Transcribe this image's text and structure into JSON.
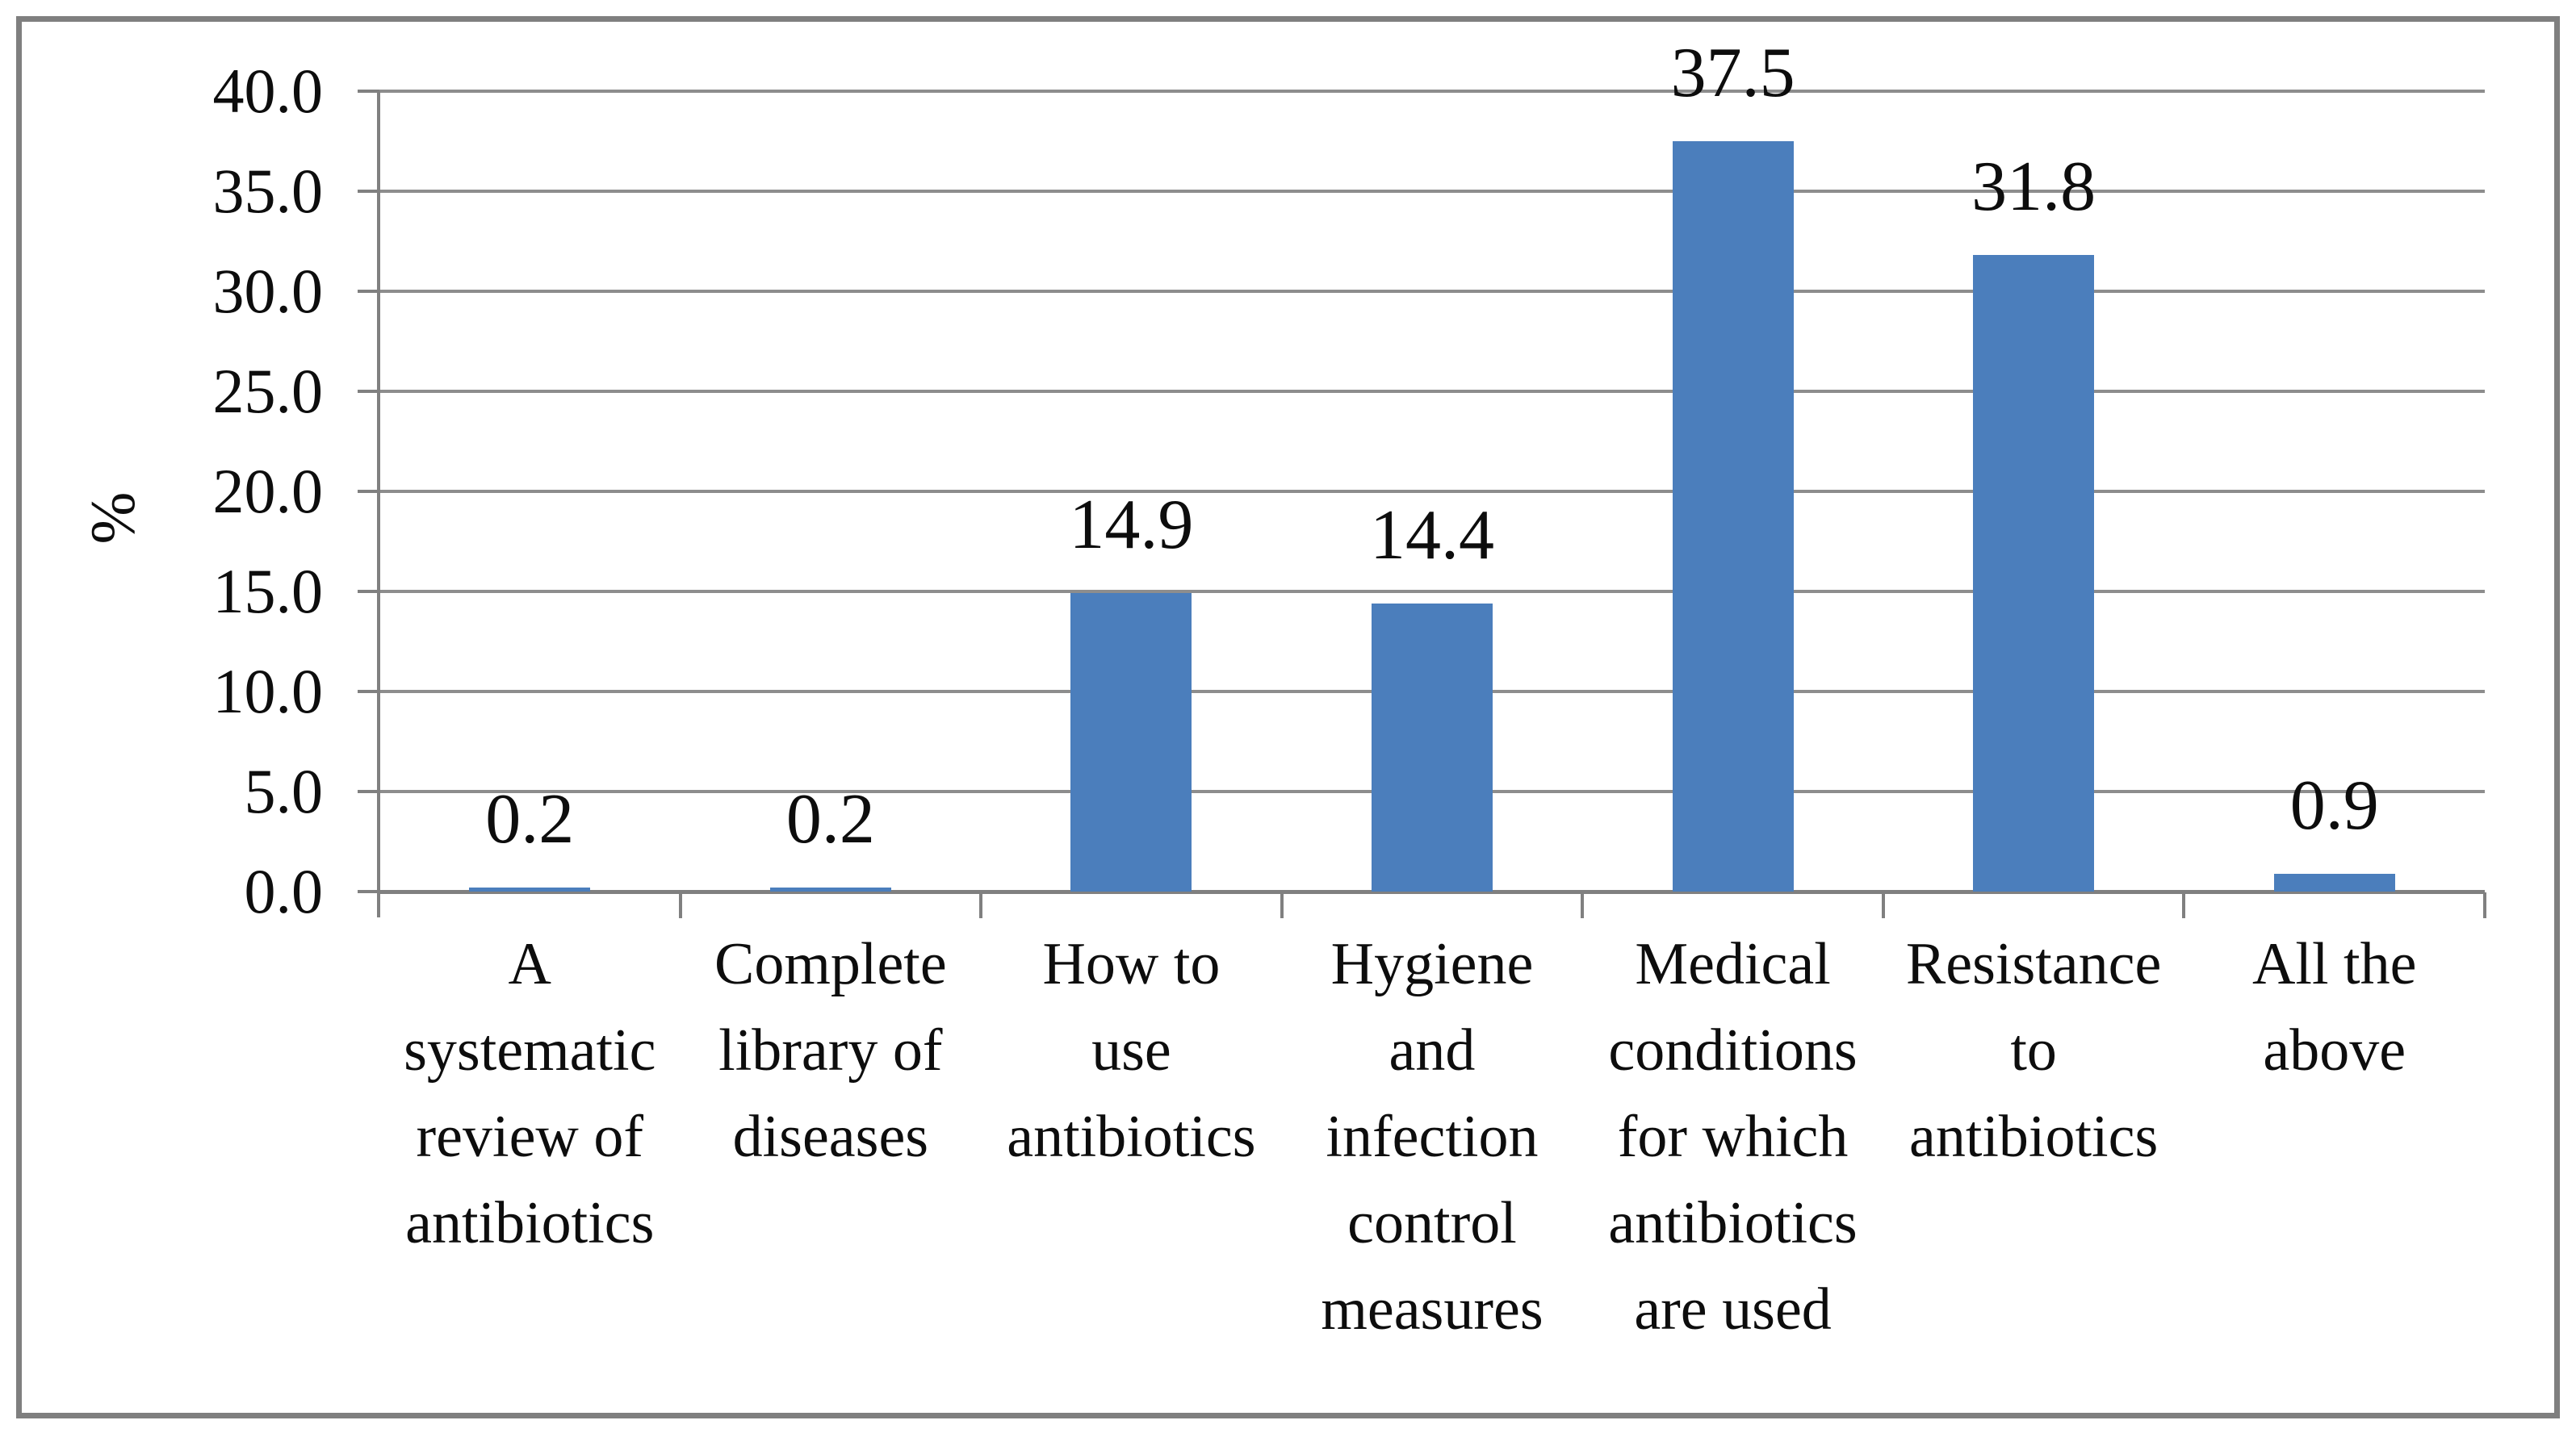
{
  "chart_data": {
    "type": "bar",
    "title": "",
    "ylabel": "%",
    "xlabel": "",
    "categories": [
      "A systematic review of antibiotics",
      "Complete library of diseases",
      "How to use antibiotics",
      "Hygiene and infection control measures",
      "Medical conditions for which antibiotics are used",
      "Resistance to antibiotics",
      "All the above"
    ],
    "category_lines": [
      [
        "A",
        "systematic",
        "review of",
        "antibiotics"
      ],
      [
        "Complete",
        "library of",
        "diseases"
      ],
      [
        "How to",
        "use",
        "antibiotics"
      ],
      [
        "Hygiene",
        "and",
        "infection",
        "control",
        "measures"
      ],
      [
        "Medical",
        "conditions",
        "for which",
        "antibiotics",
        "are used"
      ],
      [
        "Resistance",
        "to",
        "antibiotics"
      ],
      [
        "All the",
        "above"
      ]
    ],
    "values": [
      0.2,
      0.2,
      14.9,
      14.4,
      37.5,
      31.8,
      0.9
    ],
    "data_labels": [
      "0.2",
      "0.2",
      "14.9",
      "14.4",
      "37.5",
      "31.8",
      "0.9"
    ],
    "y_ticks": [
      "40.0",
      "35.0",
      "30.0",
      "25.0",
      "20.0",
      "15.0",
      "10.0",
      "5.0",
      "0.0"
    ],
    "ylim": [
      0,
      40
    ],
    "grid": true,
    "legend": "none",
    "colors": {
      "bar": "#4b7ebc",
      "gridline": "#8d8d8d",
      "axis": "#808080",
      "frame_border": "#7f7f7f",
      "text": "#0d0d0d",
      "background": "#ffffff"
    }
  }
}
